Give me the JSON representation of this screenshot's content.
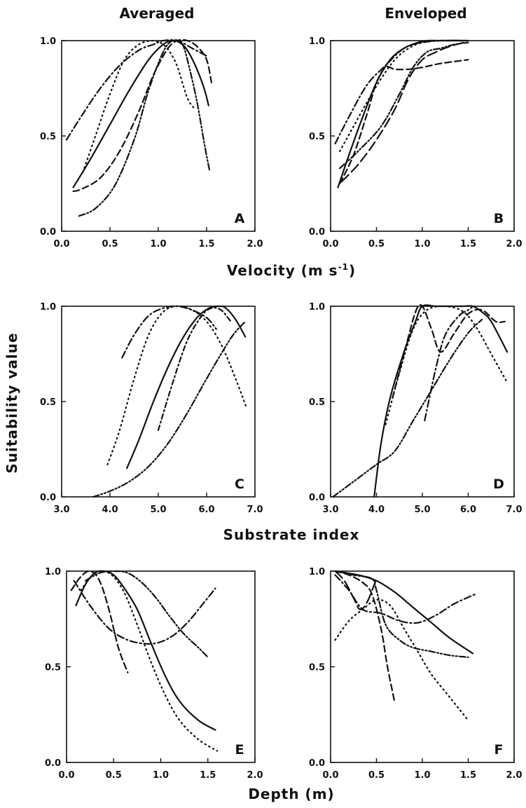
{
  "column_titles": {
    "left": "Averaged",
    "right": "Enveloped"
  },
  "y_axis_title": "Suitability value",
  "x_axis_titles": {
    "velocity": "Velocity  (m s",
    "velocity_sup": "-1",
    "velocity_close": ")",
    "substrate": "Substrate  index",
    "depth": "Depth  (m)"
  },
  "chart_data": [
    {
      "type": "line",
      "panel": "A",
      "xlim": [
        0.0,
        2.0
      ],
      "ylim": [
        0.0,
        1.0
      ],
      "xticks": [
        "0.0",
        "0.5",
        "1.0",
        "1.5",
        "2.0"
      ],
      "yticks": [
        "0.0",
        "0.5",
        "1.0"
      ],
      "series": [
        {
          "style": "solid",
          "x": [
            0.12,
            0.3,
            0.5,
            0.7,
            0.9,
            1.05,
            1.15,
            1.22,
            1.3,
            1.4,
            1.48,
            1.52
          ],
          "y": [
            0.23,
            0.38,
            0.56,
            0.74,
            0.9,
            0.98,
            1.0,
            0.99,
            0.95,
            0.85,
            0.74,
            0.66
          ]
        },
        {
          "style": "dashdot",
          "x": [
            0.05,
            0.2,
            0.4,
            0.6,
            0.8,
            0.95,
            1.05,
            1.2,
            1.35,
            1.5
          ],
          "y": [
            0.48,
            0.6,
            0.75,
            0.87,
            0.95,
            0.98,
            1.0,
            1.0,
            0.96,
            0.92
          ]
        },
        {
          "style": "dashed",
          "x": [
            0.12,
            0.2,
            0.4,
            0.6,
            0.8,
            0.95,
            1.1,
            1.2,
            1.3,
            1.4,
            1.5,
            1.55
          ],
          "y": [
            0.21,
            0.22,
            0.28,
            0.42,
            0.63,
            0.82,
            0.96,
            1.0,
            1.0,
            0.97,
            0.9,
            0.78
          ]
        },
        {
          "style": "dashdotdot",
          "x": [
            0.18,
            0.35,
            0.55,
            0.75,
            0.9,
            1.05,
            1.15,
            1.25,
            1.32,
            1.4,
            1.48,
            1.53
          ],
          "y": [
            0.08,
            0.12,
            0.24,
            0.48,
            0.74,
            0.94,
            1.0,
            0.98,
            0.86,
            0.68,
            0.45,
            0.32
          ]
        },
        {
          "style": "dotted",
          "x": [
            0.22,
            0.35,
            0.5,
            0.65,
            0.8,
            0.95,
            1.05,
            1.12,
            1.2,
            1.3,
            1.38
          ],
          "y": [
            0.31,
            0.5,
            0.72,
            0.9,
            0.98,
            1.0,
            0.98,
            0.94,
            0.86,
            0.7,
            0.64
          ]
        }
      ]
    },
    {
      "type": "line",
      "panel": "B",
      "xlim": [
        0.0,
        2.0
      ],
      "ylim": [
        0.0,
        1.0
      ],
      "xticks": [
        "0.0",
        "0.5",
        "1.0",
        "1.5",
        "2.0"
      ],
      "yticks": [
        "0.0",
        "0.5",
        "1.0"
      ],
      "series": [
        {
          "style": "solid",
          "x": [
            0.08,
            0.2,
            0.35,
            0.5,
            0.65,
            0.8,
            0.95,
            1.05,
            1.2,
            1.5
          ],
          "y": [
            0.23,
            0.4,
            0.6,
            0.78,
            0.9,
            0.96,
            0.99,
            1.0,
            1.0,
            1.0
          ]
        },
        {
          "style": "dashdot",
          "x": [
            0.05,
            0.2,
            0.4,
            0.6,
            0.8,
            1.0,
            1.2,
            1.5
          ],
          "y": [
            0.46,
            0.6,
            0.77,
            0.87,
            0.96,
            0.99,
            1.0,
            1.0
          ]
        },
        {
          "style": "dashed",
          "x": [
            0.1,
            0.25,
            0.4,
            0.5,
            0.6,
            0.7,
            0.85,
            1.0,
            1.2,
            1.5
          ],
          "y": [
            0.25,
            0.4,
            0.62,
            0.78,
            0.86,
            0.85,
            0.85,
            0.86,
            0.88,
            0.9
          ]
        },
        {
          "style": "dashdotdot",
          "x": [
            0.1,
            0.3,
            0.55,
            0.75,
            0.9,
            1.05,
            1.2,
            1.35,
            1.5
          ],
          "y": [
            0.33,
            0.42,
            0.55,
            0.72,
            0.86,
            0.94,
            0.96,
            0.98,
            0.99
          ]
        },
        {
          "style": "longdash",
          "x": [
            0.12,
            0.3,
            0.5,
            0.7,
            0.85,
            1.0,
            1.15,
            1.3,
            1.45
          ],
          "y": [
            0.26,
            0.35,
            0.48,
            0.64,
            0.8,
            0.9,
            0.94,
            0.97,
            0.99
          ]
        },
        {
          "style": "dotted",
          "x": [
            0.1,
            0.25,
            0.4,
            0.55,
            0.7,
            0.85,
            1.0,
            1.2,
            1.5
          ],
          "y": [
            0.42,
            0.55,
            0.68,
            0.8,
            0.9,
            0.96,
            0.99,
            1.0,
            1.0
          ]
        }
      ]
    },
    {
      "type": "line",
      "panel": "C",
      "xlim": [
        3.0,
        7.0
      ],
      "ylim": [
        0.0,
        1.0
      ],
      "xticks": [
        "3.0",
        "4.0",
        "5.0",
        "6.0",
        "7.0"
      ],
      "yticks": [
        "0.0",
        "0.5",
        "1.0"
      ],
      "series": [
        {
          "style": "solid",
          "x": [
            4.35,
            4.6,
            4.9,
            5.2,
            5.5,
            5.8,
            6.05,
            6.25,
            6.4,
            6.6,
            6.8
          ],
          "y": [
            0.15,
            0.3,
            0.5,
            0.68,
            0.83,
            0.94,
            0.99,
            1.0,
            0.99,
            0.93,
            0.84
          ]
        },
        {
          "style": "dashdot",
          "x": [
            4.25,
            4.5,
            4.8,
            5.1,
            5.4,
            5.7,
            6.0,
            6.2
          ],
          "y": [
            0.73,
            0.85,
            0.95,
            0.99,
            1.0,
            0.98,
            0.94,
            0.88
          ]
        },
        {
          "style": "dotted",
          "x": [
            3.95,
            4.2,
            4.5,
            4.8,
            5.1,
            5.4,
            5.7,
            6.0,
            6.3,
            6.6,
            6.82
          ],
          "y": [
            0.17,
            0.35,
            0.62,
            0.85,
            0.97,
            1.0,
            0.98,
            0.92,
            0.8,
            0.62,
            0.47
          ]
        },
        {
          "style": "dashdotdot",
          "x": [
            3.65,
            4.0,
            4.4,
            4.8,
            5.2,
            5.6,
            6.0,
            6.3,
            6.55,
            6.8
          ],
          "y": [
            0.0,
            0.03,
            0.08,
            0.16,
            0.28,
            0.44,
            0.62,
            0.75,
            0.85,
            0.92
          ]
        },
        {
          "style": "dashdot2",
          "x": [
            5.0,
            5.3,
            5.6,
            5.9,
            6.1,
            6.3,
            6.5
          ],
          "y": [
            0.35,
            0.6,
            0.82,
            0.95,
            0.99,
            0.98,
            0.92
          ]
        }
      ]
    },
    {
      "type": "line",
      "panel": "D",
      "xlim": [
        3.0,
        7.0
      ],
      "ylim": [
        0.0,
        1.0
      ],
      "xticks": [
        "3.0",
        "4.0",
        "5.0",
        "6.0",
        "7.0"
      ],
      "yticks": [
        "0.0",
        "0.5",
        "1.0"
      ],
      "series": [
        {
          "style": "solid",
          "x": [
            3.95,
            4.1,
            4.3,
            4.6,
            4.85,
            5.0,
            5.3,
            5.6,
            5.9,
            6.1,
            6.3,
            6.5,
            6.85
          ],
          "y": [
            0.0,
            0.28,
            0.52,
            0.76,
            0.92,
            1.0,
            1.0,
            1.0,
            1.0,
            1.0,
            0.97,
            0.92,
            0.76
          ]
        },
        {
          "style": "dashed",
          "x": [
            4.35,
            4.6,
            4.85,
            5.0,
            5.2,
            5.4,
            5.7,
            6.0,
            6.3,
            6.6,
            6.8
          ],
          "y": [
            0.52,
            0.75,
            0.97,
            1.0,
            0.88,
            0.76,
            0.86,
            0.96,
            0.98,
            0.92,
            0.92
          ]
        },
        {
          "style": "dashdotdot",
          "x": [
            3.05,
            3.5,
            4.0,
            4.4,
            4.8,
            5.2,
            5.6,
            6.0,
            6.3
          ],
          "y": [
            0.0,
            0.08,
            0.17,
            0.24,
            0.4,
            0.56,
            0.72,
            0.86,
            0.93
          ]
        },
        {
          "style": "dashdot",
          "x": [
            5.05,
            5.3,
            5.5,
            5.8,
            6.0,
            6.1
          ],
          "y": [
            0.4,
            0.68,
            0.85,
            0.95,
            0.98,
            1.0
          ]
        },
        {
          "style": "dotted",
          "x": [
            4.2,
            4.5,
            4.8,
            5.1,
            5.5,
            5.9,
            6.2,
            6.5,
            6.85
          ],
          "y": [
            0.38,
            0.65,
            0.88,
            0.98,
            1.0,
            0.97,
            0.88,
            0.75,
            0.6
          ]
        }
      ]
    },
    {
      "type": "line",
      "panel": "E",
      "xlim": [
        0.0,
        2.0
      ],
      "ylim": [
        0.0,
        1.0
      ],
      "xticks": [
        "0.0",
        "0.5",
        "1.0",
        "1.5",
        "2.0"
      ],
      "yticks": [
        "0.0",
        "0.5",
        "1.0"
      ],
      "series": [
        {
          "style": "solid",
          "x": [
            0.1,
            0.2,
            0.3,
            0.4,
            0.5,
            0.6,
            0.75,
            0.9,
            1.05,
            1.2,
            1.4,
            1.58
          ],
          "y": [
            0.82,
            0.93,
            0.99,
            1.0,
            0.98,
            0.92,
            0.8,
            0.62,
            0.45,
            0.32,
            0.22,
            0.17
          ]
        },
        {
          "style": "dotted",
          "x": [
            0.15,
            0.3,
            0.45,
            0.6,
            0.75,
            0.9,
            1.05,
            1.2,
            1.4,
            1.6
          ],
          "y": [
            0.9,
            0.99,
            0.99,
            0.9,
            0.72,
            0.52,
            0.35,
            0.22,
            0.12,
            0.06
          ]
        },
        {
          "style": "dashed",
          "x": [
            0.05,
            0.15,
            0.25,
            0.35,
            0.45,
            0.55,
            0.65
          ],
          "y": [
            0.9,
            0.97,
            1.0,
            0.95,
            0.8,
            0.6,
            0.47
          ]
        },
        {
          "style": "dashdot",
          "x": [
            0.08,
            0.25,
            0.45,
            0.65,
            0.85,
            1.0,
            1.15,
            1.3,
            1.45,
            1.58
          ],
          "y": [
            0.95,
            0.82,
            0.7,
            0.64,
            0.62,
            0.63,
            0.67,
            0.74,
            0.83,
            0.91
          ]
        },
        {
          "style": "dashdotdot",
          "x": [
            0.2,
            0.35,
            0.5,
            0.65,
            0.8,
            0.95,
            1.1,
            1.25,
            1.4,
            1.5
          ],
          "y": [
            0.95,
            0.99,
            1.0,
            0.99,
            0.94,
            0.86,
            0.76,
            0.67,
            0.6,
            0.55
          ]
        }
      ]
    },
    {
      "type": "line",
      "panel": "F",
      "xlim": [
        0.0,
        2.0
      ],
      "ylim": [
        0.0,
        1.0
      ],
      "xticks": [
        "0.0",
        "0.5",
        "1.0",
        "1.5",
        "2.0"
      ],
      "yticks": [
        "0.0",
        "0.5",
        "1.0"
      ],
      "series": [
        {
          "style": "solid",
          "x": [
            0.05,
            0.3,
            0.5,
            0.7,
            0.9,
            1.1,
            1.3,
            1.55
          ],
          "y": [
            1.0,
            0.98,
            0.95,
            0.89,
            0.81,
            0.73,
            0.65,
            0.57
          ]
        },
        {
          "style": "dashed",
          "x": [
            0.05,
            0.2,
            0.35,
            0.45,
            0.55,
            0.62,
            0.7
          ],
          "y": [
            1.0,
            0.98,
            0.94,
            0.88,
            0.7,
            0.5,
            0.31
          ]
        },
        {
          "style": "dashdot",
          "x": [
            0.05,
            0.2,
            0.35,
            0.55,
            0.75,
            0.95,
            1.15,
            1.35,
            1.58
          ],
          "y": [
            0.98,
            0.9,
            0.8,
            0.78,
            0.74,
            0.73,
            0.77,
            0.83,
            0.88
          ]
        },
        {
          "style": "dashdotdot",
          "x": [
            0.05,
            0.25,
            0.45,
            0.5,
            0.6,
            0.75,
            0.9,
            1.1,
            1.3,
            1.5
          ],
          "y": [
            1.0,
            0.98,
            0.96,
            0.9,
            0.72,
            0.64,
            0.6,
            0.58,
            0.56,
            0.55
          ]
        },
        {
          "style": "dotted",
          "x": [
            0.05,
            0.2,
            0.35,
            0.5,
            0.65,
            0.8,
            0.95,
            1.1,
            1.3,
            1.5
          ],
          "y": [
            0.64,
            0.74,
            0.8,
            0.85,
            0.82,
            0.7,
            0.58,
            0.46,
            0.34,
            0.22
          ]
        },
        {
          "style": "longdash",
          "x": [
            0.05,
            0.15,
            0.25,
            0.32,
            0.4,
            0.5
          ],
          "y": [
            1.0,
            0.95,
            0.86,
            0.8,
            0.84,
            0.96
          ]
        }
      ]
    }
  ]
}
